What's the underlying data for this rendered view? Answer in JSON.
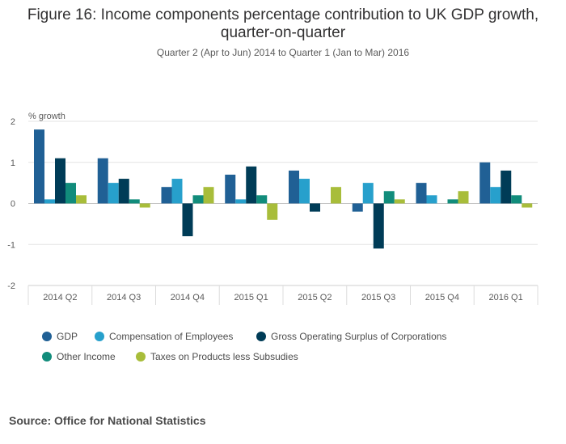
{
  "chart_data": {
    "type": "bar",
    "title_line1": "Figure 16: Income components percentage contribution to UK GDP growth,",
    "title_line2": "quarter-on-quarter",
    "subtitle": "Quarter 2 (Apr to Jun) 2014 to Quarter 1 (Jan to Mar) 2016",
    "ylabel": "% growth",
    "xlabel": "",
    "ylim": [
      -2,
      2
    ],
    "yticks": [
      2,
      1,
      0,
      -1,
      -2
    ],
    "ytick_labels": [
      "2",
      "1",
      "0",
      "-1",
      "-2"
    ],
    "grid": true,
    "legend_position": "bottom",
    "categories": [
      "2014 Q2",
      "2014 Q3",
      "2014 Q4",
      "2015 Q1",
      "2015 Q2",
      "2015 Q3",
      "2015 Q4",
      "2016 Q1"
    ],
    "series": [
      {
        "name": "GDP",
        "color": "#206095",
        "values": [
          1.8,
          1.1,
          0.4,
          0.7,
          0.8,
          -0.2,
          0.5,
          1.0
        ]
      },
      {
        "name": "Compensation of Employees",
        "color": "#27a0cc",
        "values": [
          0.1,
          0.5,
          0.6,
          0.1,
          0.6,
          0.5,
          0.2,
          0.4
        ]
      },
      {
        "name": "Gross Operating Surplus of Corporations",
        "color": "#003c57",
        "values": [
          1.1,
          0.6,
          -0.8,
          0.9,
          -0.2,
          -1.1,
          0.0,
          0.8
        ]
      },
      {
        "name": "Other Income",
        "color": "#118c7b",
        "values": [
          0.5,
          0.1,
          0.2,
          0.2,
          0.0,
          0.3,
          0.1,
          0.2
        ]
      },
      {
        "name": "Taxes on Products less Subsudies",
        "color": "#a8bd3a",
        "values": [
          0.2,
          -0.1,
          0.4,
          -0.4,
          0.4,
          0.1,
          0.3,
          -0.1
        ]
      }
    ]
  },
  "source": "Source: Office for National Statistics"
}
